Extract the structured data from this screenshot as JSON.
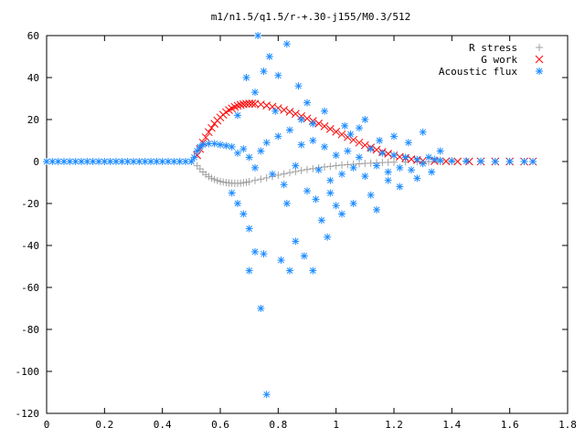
{
  "chart_data": {
    "type": "scatter",
    "title": "m1/n1.5/q1.5/r-+.30-j155/M0.3/512",
    "xlabel": "",
    "ylabel": "",
    "xlim": [
      0,
      1.8
    ],
    "ylim": [
      -120,
      60
    ],
    "x_ticks": [
      "0",
      "0.2",
      "0.4",
      "0.6",
      "0.8",
      "1",
      "1.2",
      "1.4",
      "1.6",
      "1.8"
    ],
    "y_ticks": [
      "60",
      "40",
      "20",
      "0",
      "-20",
      "-40",
      "-60",
      "-80",
      "-100",
      "-120"
    ],
    "grid": false,
    "legend_position": "top-right",
    "series": [
      {
        "name": "R stress",
        "marker": "+",
        "color": "#a0a0a0",
        "points": [
          [
            0.52,
            -2
          ],
          [
            0.53,
            -3.5
          ],
          [
            0.54,
            -5
          ],
          [
            0.55,
            -6.2
          ],
          [
            0.56,
            -7.2
          ],
          [
            0.57,
            -8
          ],
          [
            0.58,
            -8.6
          ],
          [
            0.59,
            -9.1
          ],
          [
            0.6,
            -9.5
          ],
          [
            0.61,
            -9.8
          ],
          [
            0.62,
            -10
          ],
          [
            0.63,
            -10.2
          ],
          [
            0.64,
            -10.3
          ],
          [
            0.65,
            -10.4
          ],
          [
            0.66,
            -10.4
          ],
          [
            0.67,
            -10.3
          ],
          [
            0.68,
            -10.1
          ],
          [
            0.69,
            -9.9
          ],
          [
            0.7,
            -9.6
          ],
          [
            0.72,
            -9
          ],
          [
            0.74,
            -8.4
          ],
          [
            0.76,
            -7.8
          ],
          [
            0.78,
            -7.1
          ],
          [
            0.8,
            -6.5
          ],
          [
            0.82,
            -5.9
          ],
          [
            0.84,
            -5.3
          ],
          [
            0.86,
            -4.8
          ],
          [
            0.88,
            -4.3
          ],
          [
            0.9,
            -3.8
          ],
          [
            0.92,
            -3.4
          ],
          [
            0.94,
            -3
          ],
          [
            0.96,
            -2.6
          ],
          [
            0.98,
            -2.3
          ],
          [
            1.0,
            -2
          ],
          [
            1.02,
            -1.7
          ],
          [
            1.04,
            -1.5
          ],
          [
            1.06,
            -1.3
          ],
          [
            1.08,
            -1.1
          ],
          [
            1.1,
            -0.9
          ],
          [
            1.12,
            -0.8
          ],
          [
            1.14,
            -0.6
          ],
          [
            1.16,
            -0.5
          ],
          [
            1.18,
            -0.4
          ],
          [
            1.2,
            -0.3
          ],
          [
            1.24,
            -0.2
          ],
          [
            1.28,
            -0.1
          ],
          [
            1.32,
            -0.1
          ],
          [
            1.36,
            0
          ],
          [
            1.4,
            0
          ],
          [
            1.45,
            0
          ],
          [
            1.5,
            0
          ],
          [
            1.55,
            0
          ],
          [
            1.6,
            0
          ],
          [
            1.65,
            0
          ],
          [
            1.68,
            0
          ]
        ]
      },
      {
        "name": "G work",
        "marker": "x",
        "color": "#ff0000",
        "points": [
          [
            0.52,
            3
          ],
          [
            0.53,
            6
          ],
          [
            0.54,
            9
          ],
          [
            0.55,
            11.5
          ],
          [
            0.56,
            14
          ],
          [
            0.57,
            16
          ],
          [
            0.58,
            18
          ],
          [
            0.59,
            19.5
          ],
          [
            0.6,
            21
          ],
          [
            0.61,
            22.3
          ],
          [
            0.62,
            23.5
          ],
          [
            0.63,
            24.5
          ],
          [
            0.64,
            25.3
          ],
          [
            0.65,
            26
          ],
          [
            0.66,
            26.6
          ],
          [
            0.67,
            27
          ],
          [
            0.68,
            27.3
          ],
          [
            0.69,
            27.5
          ],
          [
            0.7,
            27.6
          ],
          [
            0.71,
            27.6
          ],
          [
            0.72,
            27.5
          ],
          [
            0.74,
            27.2
          ],
          [
            0.76,
            26.7
          ],
          [
            0.78,
            26.1
          ],
          [
            0.8,
            25.4
          ],
          [
            0.82,
            24.6
          ],
          [
            0.84,
            23.7
          ],
          [
            0.86,
            22.7
          ],
          [
            0.88,
            21.6
          ],
          [
            0.9,
            20.5
          ],
          [
            0.92,
            19.3
          ],
          [
            0.94,
            18.1
          ],
          [
            0.96,
            16.8
          ],
          [
            0.98,
            15.5
          ],
          [
            1.0,
            14.2
          ],
          [
            1.02,
            12.9
          ],
          [
            1.04,
            11.6
          ],
          [
            1.06,
            10.3
          ],
          [
            1.08,
            9
          ],
          [
            1.1,
            7.8
          ],
          [
            1.12,
            6.7
          ],
          [
            1.14,
            5.6
          ],
          [
            1.16,
            4.6
          ],
          [
            1.18,
            3.7
          ],
          [
            1.2,
            2.9
          ],
          [
            1.22,
            2.2
          ],
          [
            1.24,
            1.6
          ],
          [
            1.26,
            1.1
          ],
          [
            1.28,
            0.7
          ],
          [
            1.3,
            0.4
          ],
          [
            1.34,
            0.2
          ],
          [
            1.38,
            0.1
          ],
          [
            1.42,
            0
          ],
          [
            1.46,
            0
          ],
          [
            1.5,
            0
          ],
          [
            1.55,
            0
          ],
          [
            1.6,
            0
          ],
          [
            1.65,
            0
          ],
          [
            1.68,
            0
          ]
        ]
      },
      {
        "name": "Acoustic flux",
        "marker": "*",
        "color": "#1e8cff",
        "points": [
          [
            0,
            0
          ],
          [
            0.02,
            0
          ],
          [
            0.04,
            0
          ],
          [
            0.06,
            0
          ],
          [
            0.08,
            0
          ],
          [
            0.1,
            0
          ],
          [
            0.12,
            0
          ],
          [
            0.14,
            0
          ],
          [
            0.16,
            0
          ],
          [
            0.18,
            0
          ],
          [
            0.2,
            0
          ],
          [
            0.22,
            0
          ],
          [
            0.24,
            0
          ],
          [
            0.26,
            0
          ],
          [
            0.28,
            0
          ],
          [
            0.3,
            0
          ],
          [
            0.32,
            0
          ],
          [
            0.34,
            0
          ],
          [
            0.36,
            0
          ],
          [
            0.38,
            0
          ],
          [
            0.4,
            0
          ],
          [
            0.42,
            0
          ],
          [
            0.44,
            0
          ],
          [
            0.46,
            0
          ],
          [
            0.48,
            0
          ],
          [
            0.5,
            0
          ],
          [
            0.51,
            2
          ],
          [
            0.52,
            5
          ],
          [
            0.53,
            7
          ],
          [
            0.54,
            8
          ],
          [
            0.56,
            8.5
          ],
          [
            0.58,
            8.5
          ],
          [
            0.6,
            8
          ],
          [
            0.62,
            7.5
          ],
          [
            0.64,
            7
          ],
          [
            0.66,
            4
          ],
          [
            0.68,
            6
          ],
          [
            0.7,
            2
          ],
          [
            0.72,
            -3
          ],
          [
            0.74,
            5
          ],
          [
            0.76,
            9
          ],
          [
            0.78,
            -6
          ],
          [
            0.8,
            12
          ],
          [
            0.82,
            -11
          ],
          [
            0.84,
            15
          ],
          [
            0.86,
            -2
          ],
          [
            0.88,
            8
          ],
          [
            0.9,
            -14
          ],
          [
            0.92,
            10
          ],
          [
            0.94,
            -4
          ],
          [
            0.96,
            7
          ],
          [
            0.98,
            -9
          ],
          [
            1.0,
            3
          ],
          [
            1.02,
            -6
          ],
          [
            1.04,
            5
          ],
          [
            1.06,
            -3
          ],
          [
            1.08,
            2
          ],
          [
            1.1,
            -7
          ],
          [
            1.12,
            6
          ],
          [
            1.14,
            -2
          ],
          [
            1.16,
            4
          ],
          [
            1.18,
            -5
          ],
          [
            1.2,
            3
          ],
          [
            1.22,
            -3
          ],
          [
            1.24,
            2
          ],
          [
            1.26,
            -4
          ],
          [
            1.28,
            1
          ],
          [
            1.3,
            -1
          ],
          [
            1.32,
            2
          ],
          [
            1.34,
            1
          ],
          [
            1.36,
            0.5
          ],
          [
            1.4,
            0.3
          ],
          [
            1.45,
            0.2
          ],
          [
            1.5,
            0.1
          ],
          [
            1.55,
            0
          ],
          [
            1.6,
            0
          ],
          [
            1.65,
            0
          ],
          [
            1.68,
            0
          ],
          [
            0.73,
            60
          ],
          [
            0.83,
            56
          ],
          [
            0.77,
            50
          ],
          [
            0.69,
            40
          ],
          [
            0.75,
            43
          ],
          [
            0.8,
            41
          ],
          [
            0.87,
            36
          ],
          [
            0.72,
            33
          ],
          [
            0.9,
            28
          ],
          [
            0.66,
            22
          ],
          [
            0.92,
            18
          ],
          [
            1.1,
            20
          ],
          [
            0.68,
            -25
          ],
          [
            0.7,
            -32
          ],
          [
            0.72,
            -43
          ],
          [
            0.75,
            -44
          ],
          [
            0.7,
            -52
          ],
          [
            0.81,
            -47
          ],
          [
            0.84,
            -52
          ],
          [
            0.89,
            -45
          ],
          [
            0.92,
            -52
          ],
          [
            0.86,
            -38
          ],
          [
            0.97,
            -36
          ],
          [
            0.95,
            -28
          ],
          [
            1.02,
            -25
          ],
          [
            1.06,
            -20
          ],
          [
            1.14,
            -23
          ],
          [
            0.74,
            -70
          ],
          [
            0.76,
            -111
          ],
          [
            0.64,
            -15
          ],
          [
            0.66,
            -20
          ],
          [
            1.2,
            12
          ],
          [
            1.25,
            9
          ],
          [
            1.3,
            14
          ],
          [
            1.33,
            -5
          ],
          [
            1.36,
            5
          ],
          [
            1.28,
            -8
          ],
          [
            1.22,
            -12
          ],
          [
            1.15,
            10
          ],
          [
            1.05,
            13
          ],
          [
            0.98,
            -15
          ],
          [
            0.88,
            20
          ],
          [
            0.83,
            -20
          ],
          [
            0.79,
            24
          ],
          [
            0.93,
            -18
          ],
          [
            1.0,
            -21
          ],
          [
            1.08,
            16
          ],
          [
            1.12,
            -16
          ],
          [
            1.18,
            -9
          ],
          [
            0.96,
            24
          ],
          [
            1.03,
            17
          ]
        ]
      }
    ]
  }
}
